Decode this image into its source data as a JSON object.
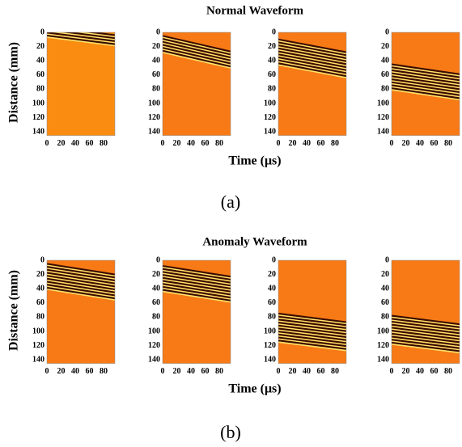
{
  "figures": [
    {
      "title": "Normal Waveform",
      "caption": "(a)"
    },
    {
      "title": "Anomaly Waveform",
      "caption": "(b)"
    }
  ],
  "y_label": "Distance (mm)",
  "x_label": "Time (μs)",
  "yticks": [
    0,
    20,
    40,
    60,
    80,
    100,
    120,
    140
  ],
  "xticks": [
    0,
    20,
    40,
    60,
    80
  ]
}
